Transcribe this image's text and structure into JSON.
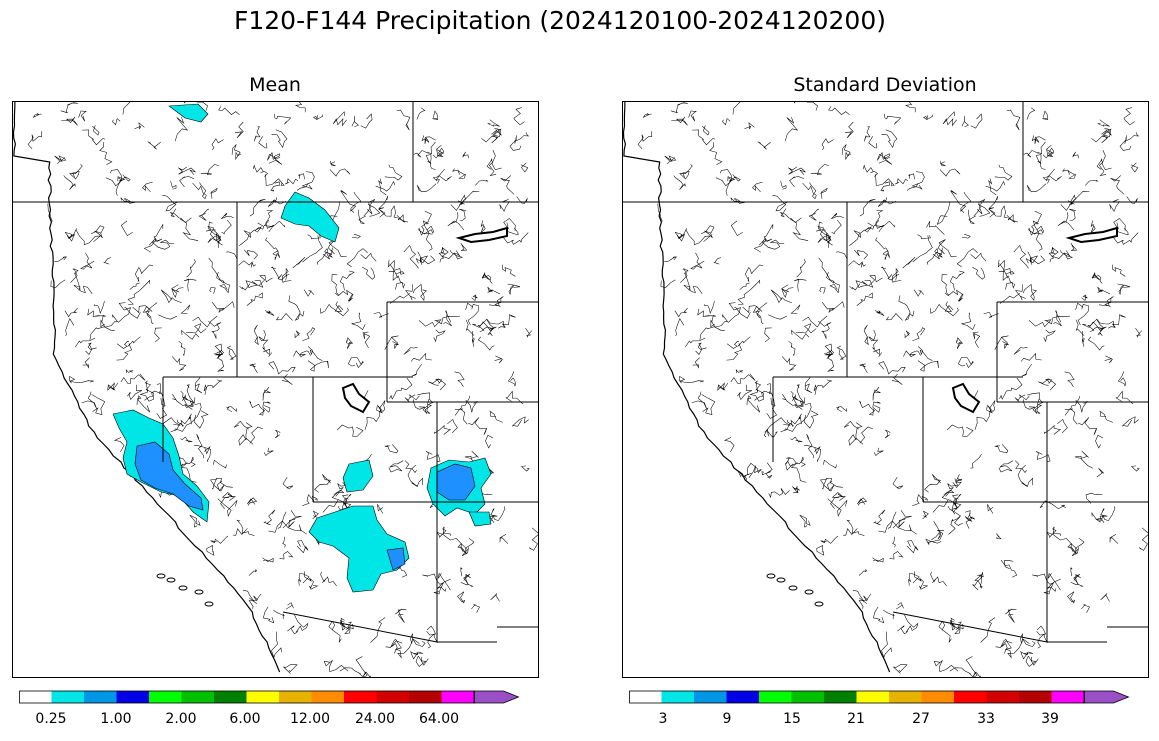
{
  "figure": {
    "title": "F120-F144 Precipitation (2024120100-2024120200)"
  },
  "panels": [
    {
      "title": "Mean",
      "colorbar": {
        "colors": [
          "#ffffff",
          "#00e5e5",
          "#0096e6",
          "#0000e6",
          "#00ff00",
          "#00c000",
          "#008000",
          "#ffff00",
          "#e6b400",
          "#ff8c00",
          "#ff0000",
          "#d20000",
          "#b40000",
          "#ff00ff",
          "#9a4fc7"
        ],
        "tick_labels": [
          "0.25",
          "1.00",
          "2.00",
          "6.00",
          "12.00",
          "24.00",
          "64.00"
        ],
        "extend": "max"
      }
    },
    {
      "title": "Standard Deviation",
      "colorbar": {
        "colors": [
          "#ffffff",
          "#00e5e5",
          "#0096e6",
          "#0000e6",
          "#00ff00",
          "#00c000",
          "#008000",
          "#ffff00",
          "#e6b400",
          "#ff8c00",
          "#ff0000",
          "#d20000",
          "#b40000",
          "#ff00ff",
          "#9a4fc7"
        ],
        "tick_labels": [
          "3",
          "9",
          "15",
          "21",
          "27",
          "33",
          "39"
        ],
        "extend": "max"
      }
    }
  ],
  "legend_colors": {
    "light": "#00e5e5",
    "medium": "#1e90ff"
  }
}
